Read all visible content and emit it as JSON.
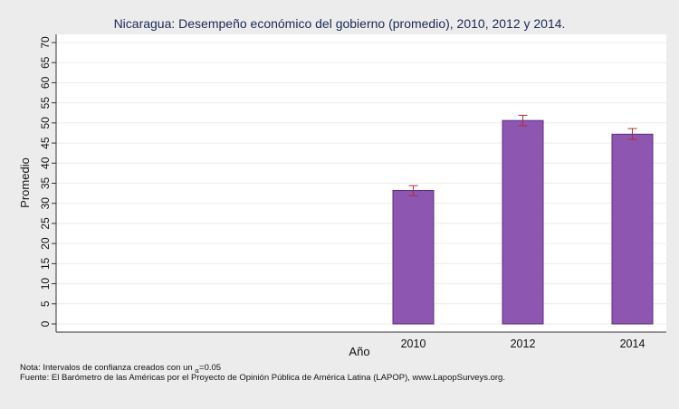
{
  "chart_data": {
    "type": "bar",
    "title": "Nicaragua: Desempeño económico del gobierno (promedio), 2010, 2012 y 2014.",
    "xlabel": "Año",
    "ylabel": "Promedio",
    "categories": [
      "2010",
      "2012",
      "2014"
    ],
    "values": [
      33.2,
      50.6,
      47.2
    ],
    "ci": [
      [
        31.9,
        34.4
      ],
      [
        49.3,
        51.9
      ],
      [
        45.9,
        48.6
      ]
    ],
    "ylim": [
      0,
      70
    ],
    "yticks": [
      "0",
      "5",
      "10",
      "15",
      "20",
      "25",
      "30",
      "35",
      "40",
      "45",
      "50",
      "55",
      "60",
      "65",
      "70"
    ],
    "grid": true,
    "bar_color": "#8c56b1",
    "ci_color": "#b03030",
    "background_color": "#ececec",
    "plot_background_color": "#ffffff"
  },
  "footer": {
    "nota_prefix": "Nota: Intervalos de confianza creados con un ",
    "alpha_symbol": "α",
    "alpha_value": "=0.05",
    "fuente": "Fuente: El Barómetro de las Américas por el Proyecto de Opinión Pública de América Latina (LAPOP), www.LapopSurveys.org."
  }
}
